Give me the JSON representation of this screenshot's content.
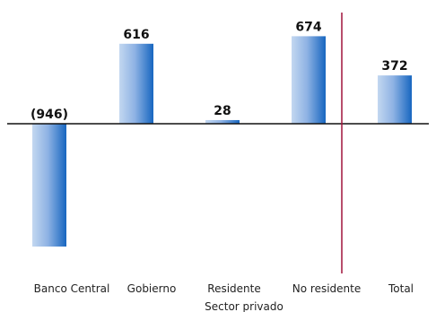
{
  "chart_data": {
    "type": "bar",
    "categories": [
      "Banco Central",
      "Gobierno",
      "Residente",
      "No residente",
      "Total"
    ],
    "values": [
      -946,
      616,
      28,
      674,
      372
    ],
    "data_labels": [
      "(946)",
      "616",
      "28",
      "674",
      "372"
    ],
    "group_label": "Sector privado",
    "colors": {
      "bar_light": "#b9d0ee",
      "bar_dark": "#1a6cc2",
      "axis": "#111111",
      "divider": "#a0143c"
    },
    "grid": false,
    "legend": "none"
  }
}
